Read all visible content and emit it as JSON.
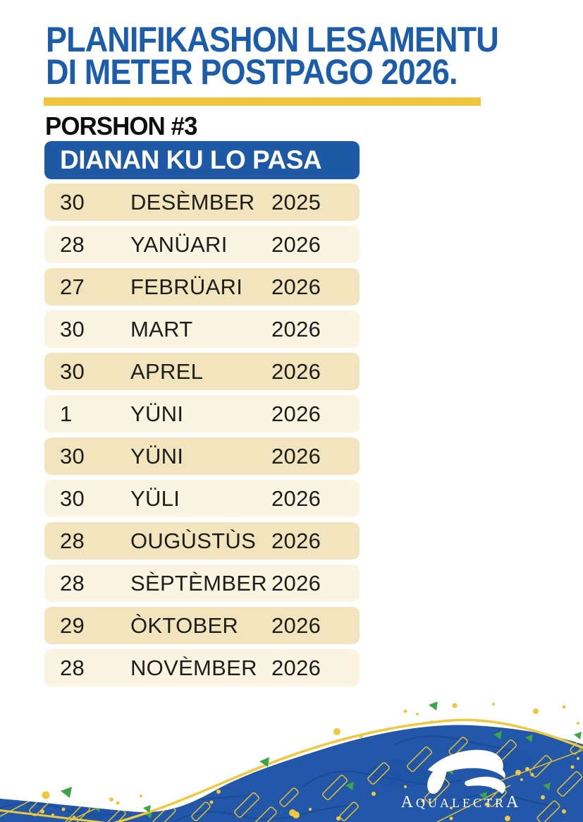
{
  "header": {
    "title_line1": "PLANIFIKASHON LESAMENTU",
    "title_line2": "DI METER POSTPAGO 2026.",
    "section_label": "PORSHON #3"
  },
  "schedule": {
    "header": "DIANAN KU LO PASA",
    "columns": [
      "day",
      "month",
      "year"
    ],
    "rows": [
      {
        "day": "30",
        "month": "DESÈMBER",
        "year": "2025"
      },
      {
        "day": "28",
        "month": "YANÜARI",
        "year": "2026"
      },
      {
        "day": "27",
        "month": "FEBRÜARI",
        "year": "2026"
      },
      {
        "day": "30",
        "month": "MART",
        "year": "2026"
      },
      {
        "day": "30",
        "month": "APREL",
        "year": "2026"
      },
      {
        "day": "1",
        "month": "YÜNI",
        "year": "2026"
      },
      {
        "day": "30",
        "month": "YÜNI",
        "year": "2026"
      },
      {
        "day": "30",
        "month": "YÜLI",
        "year": "2026"
      },
      {
        "day": "28",
        "month": "OUGÙSTÙS",
        "year": "2026"
      },
      {
        "day": "28",
        "month": "SÈPTÈMBER",
        "year": "2026"
      },
      {
        "day": "29",
        "month": "ÒKTOBER",
        "year": "2026"
      },
      {
        "day": "28",
        "month": "NOVÈMBER",
        "year": "2026"
      }
    ]
  },
  "footer": {
    "logo": {
      "first": "A",
      "middle": "QUALECTR",
      "last": "A"
    }
  },
  "colors": {
    "title_blue": "#1b5cab",
    "header_bar_blue": "#1e59a5",
    "wave_blue": "#2257a9",
    "wave_contour_blue": "#1a4a96",
    "accent_yellow": "#edc73e",
    "row_dark_cream": "#f2e5bd",
    "row_light_cream": "#fbf4e1",
    "text_black": "#1d1d1b",
    "green_accent": "#3ba54a",
    "logo_white": "#ffffff"
  }
}
